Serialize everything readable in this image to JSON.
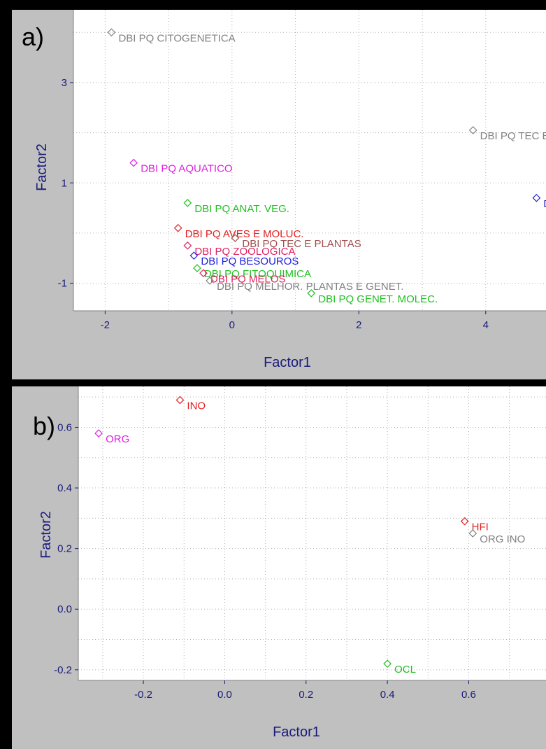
{
  "colors": {
    "panel_bg": "#c0c0c0",
    "plot_bg": "#ffffff",
    "grid": "#b0b0b0",
    "axis_text": "#1a1a7a"
  },
  "panels": {
    "a": {
      "letter": "a)"
    },
    "b": {
      "letter": "b)"
    }
  },
  "chart_data": [
    {
      "type": "scatter",
      "panel": "a",
      "xlabel": "Factor1",
      "ylabel": "Factor2",
      "xlim": [
        -2.5,
        4.95
      ],
      "ylim": [
        -1.55,
        4.45
      ],
      "xticks": [
        -2,
        0,
        2,
        4
      ],
      "yticks": [
        -1,
        1,
        3
      ],
      "grid": true,
      "points": [
        {
          "label": "DBI PQ CITOGENETICA",
          "x": -1.9,
          "y": 4.0,
          "color": "#808080"
        },
        {
          "label": "DBI PQ TEC E PLANTAS",
          "x": 3.8,
          "y": 2.05,
          "color": "#808080"
        },
        {
          "label": "DBI PQ AQUATICO",
          "x": -1.55,
          "y": 1.4,
          "color": "#e020e0"
        },
        {
          "label": "DBI PQ ANAT. VEG.",
          "x": -0.7,
          "y": 0.6,
          "color": "#20c020"
        },
        {
          "label": "DBI PQ MELHOR. PLANTAS E GENET.",
          "x": 4.8,
          "y": 0.7,
          "color": "#2020c0"
        },
        {
          "label": "DBI PQ AVES E MOLUC.",
          "x": -0.85,
          "y": 0.1,
          "color": "#e02020"
        },
        {
          "label": "DBI PQ TEC E PLANTAS",
          "x": 0.05,
          "y": -0.1,
          "color": "#a05050"
        },
        {
          "label": "DBI PQ ZOOLOGICA",
          "x": -0.7,
          "y": -0.25,
          "color": "#e02060"
        },
        {
          "label": "DBI PQ BESOUROS",
          "x": -0.6,
          "y": -0.45,
          "color": "#2020e0"
        },
        {
          "label": "DBI PQ FITOQUIMICA",
          "x": -0.55,
          "y": -0.7,
          "color": "#20c020"
        },
        {
          "label": "DBI PQ MELOS",
          "x": -0.45,
          "y": -0.8,
          "color": "#e02060"
        },
        {
          "label": "DBI PQ MELHOR. PLANTAS E GENET.",
          "x": -0.35,
          "y": -0.95,
          "color": "#808080"
        },
        {
          "label": "DBI PQ GENET. MOLEC.",
          "x": 1.25,
          "y": -1.2,
          "color": "#20c020"
        }
      ]
    },
    {
      "type": "scatter",
      "panel": "b",
      "xlabel": "Factor1",
      "ylabel": "Factor2",
      "xlim": [
        -0.36,
        0.79
      ],
      "ylim": [
        -0.235,
        0.735
      ],
      "xticks": [
        -0.2,
        0.0,
        0.2,
        0.4,
        0.6
      ],
      "xticklabels": [
        "-0.2",
        "0.0",
        "0.2",
        "0.4",
        "0.6"
      ],
      "yticks": [
        -0.2,
        0.0,
        0.2,
        0.4,
        0.6
      ],
      "yticklabels": [
        "-0.2",
        "0.0",
        "0.2",
        "0.4",
        "0.6"
      ],
      "grid": true,
      "points": [
        {
          "label": "INO",
          "x": -0.11,
          "y": 0.69,
          "color": "#e02020"
        },
        {
          "label": "ORG",
          "x": -0.31,
          "y": 0.58,
          "color": "#e020e0"
        },
        {
          "label": "HFI",
          "x": 0.59,
          "y": 0.29,
          "color": "#e02020"
        },
        {
          "label": "ORG INO",
          "x": 0.61,
          "y": 0.25,
          "color": "#808080"
        },
        {
          "label": "OCL",
          "x": 0.4,
          "y": -0.18,
          "color": "#20c020"
        }
      ]
    }
  ]
}
